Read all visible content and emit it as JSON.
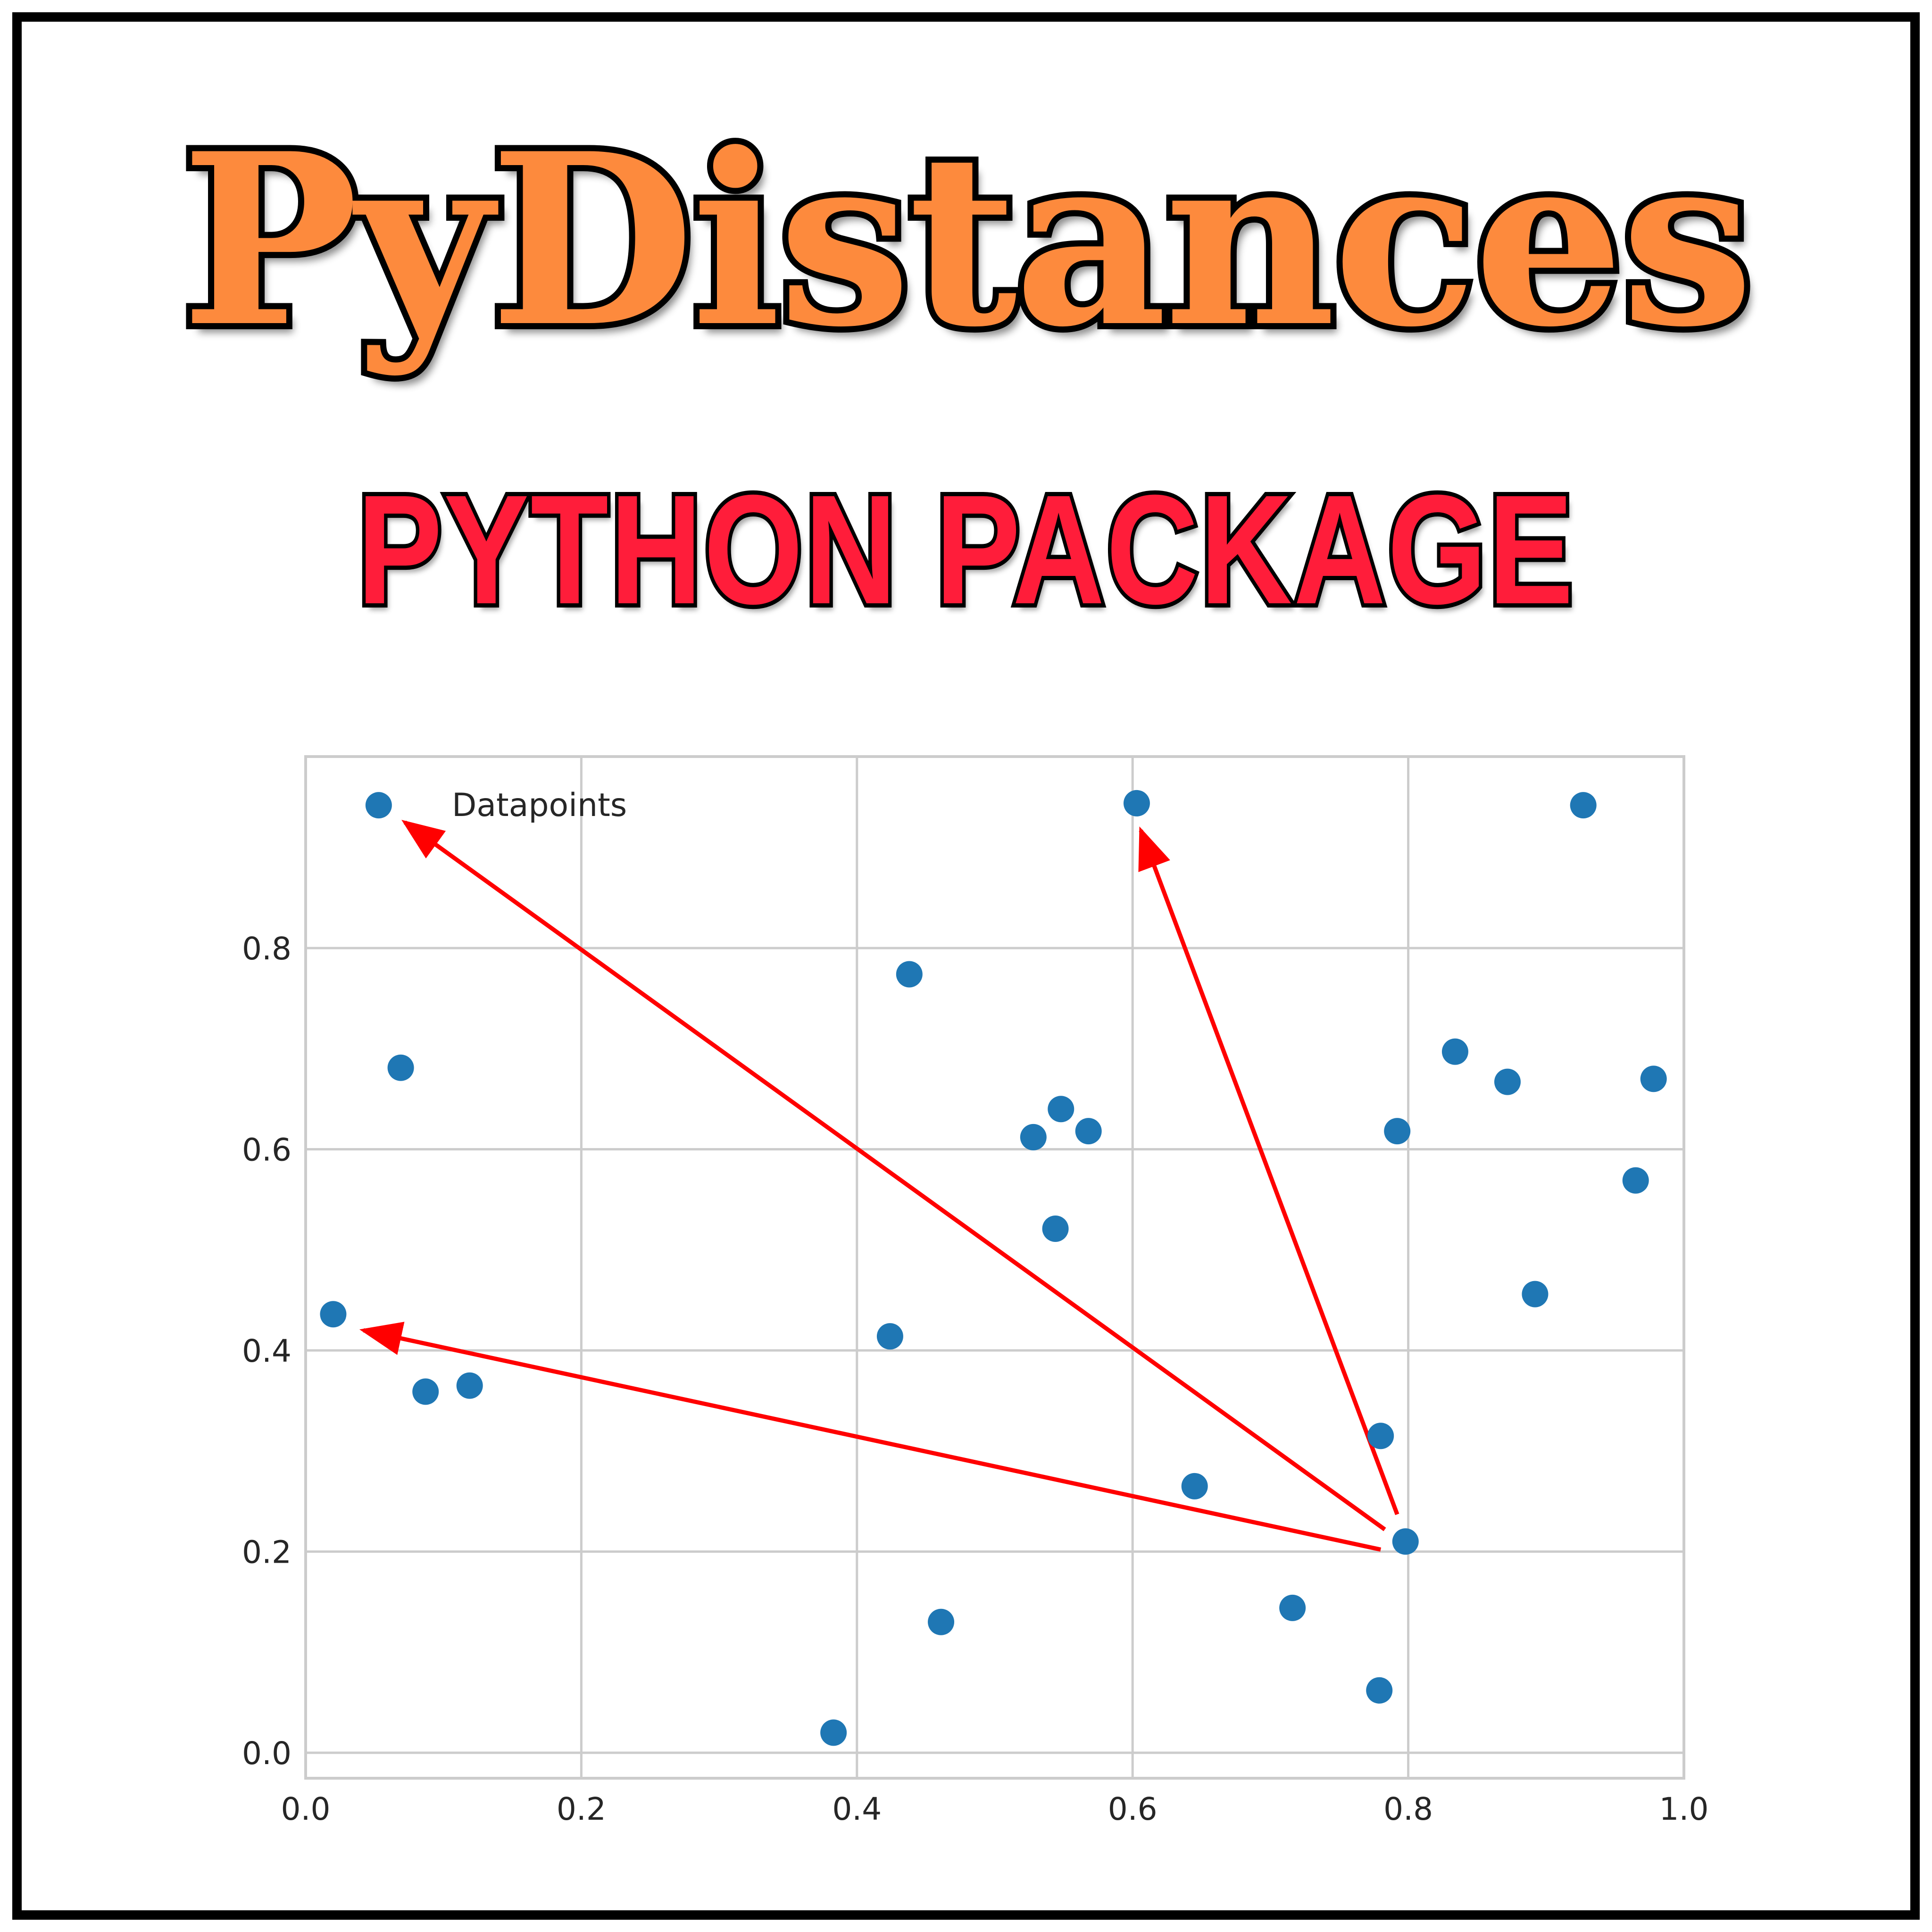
{
  "title": "PyDistances",
  "subtitle": "PYTHON PACKAGE",
  "colors": {
    "title_fill": "#fd8a3d",
    "subtitle_fill": "#ff1d3a",
    "point": "#1f77b4",
    "arrow": "#ff0000",
    "grid": "#cccccc"
  },
  "chart_data": {
    "type": "scatter",
    "xlim": [
      0.0,
      1.0
    ],
    "ylim": [
      -0.01,
      0.98
    ],
    "x_ticks": [
      "0.0",
      "0.2",
      "0.4",
      "0.6",
      "0.8",
      "1.0"
    ],
    "y_ticks": [
      "0.0",
      "0.2",
      "0.4",
      "0.6",
      "0.8"
    ],
    "grid": true,
    "legend": {
      "label": "Datapoints",
      "placement": "top-left"
    },
    "series": [
      {
        "name": "Datapoints",
        "points": [
          [
            0.053,
            0.942
          ],
          [
            0.603,
            0.944
          ],
          [
            0.927,
            0.942
          ],
          [
            0.438,
            0.774
          ],
          [
            0.069,
            0.681
          ],
          [
            0.834,
            0.697
          ],
          [
            0.872,
            0.667
          ],
          [
            0.978,
            0.67
          ],
          [
            0.548,
            0.64
          ],
          [
            0.528,
            0.612
          ],
          [
            0.568,
            0.618
          ],
          [
            0.792,
            0.618
          ],
          [
            0.965,
            0.569
          ],
          [
            0.544,
            0.521
          ],
          [
            0.892,
            0.456
          ],
          [
            0.02,
            0.436
          ],
          [
            0.424,
            0.414
          ],
          [
            0.087,
            0.359
          ],
          [
            0.119,
            0.365
          ],
          [
            0.78,
            0.315
          ],
          [
            0.645,
            0.265
          ],
          [
            0.798,
            0.21
          ],
          [
            0.716,
            0.144
          ],
          [
            0.461,
            0.13
          ],
          [
            0.779,
            0.062
          ],
          [
            0.383,
            0.02
          ]
        ]
      }
    ],
    "arrows": [
      {
        "from": [
          0.783,
          0.222
        ],
        "to": [
          0.072,
          0.925
        ]
      },
      {
        "from": [
          0.792,
          0.237
        ],
        "to": [
          0.606,
          0.917
        ]
      },
      {
        "from": [
          0.78,
          0.202
        ],
        "to": [
          0.042,
          0.42
        ]
      }
    ]
  }
}
